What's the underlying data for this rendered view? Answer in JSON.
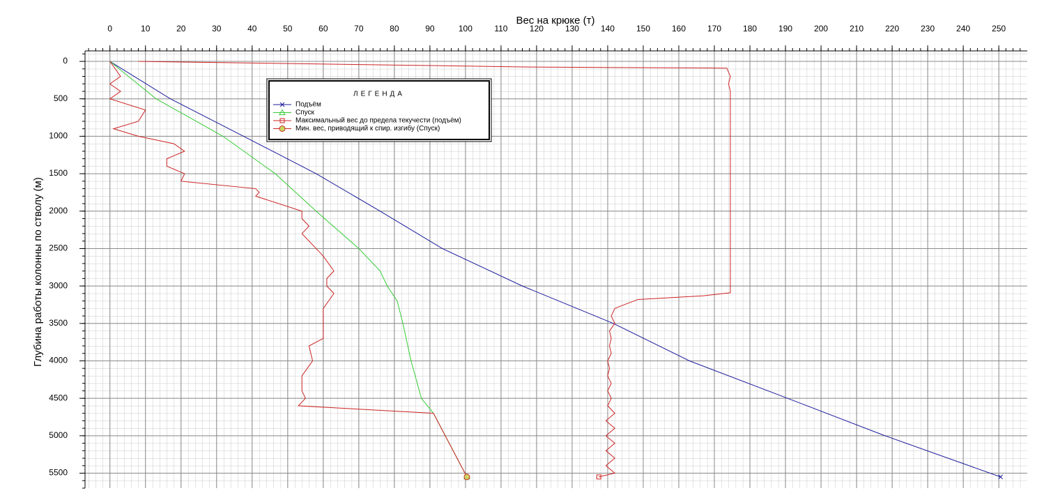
{
  "chart_data": {
    "type": "line",
    "x_label": "Вес на крюке (т)",
    "y_label": "Глубина работы колонны по стволу (м)",
    "xlim": [
      -7,
      258
    ],
    "ylim": [
      -140,
      5700
    ],
    "y_inverted": true,
    "x_axis_position": "top",
    "xticks": [
      0,
      10,
      20,
      30,
      40,
      50,
      60,
      70,
      80,
      90,
      100,
      110,
      120,
      130,
      140,
      150,
      160,
      170,
      180,
      190,
      200,
      210,
      220,
      230,
      240,
      250
    ],
    "yticks": [
      0,
      500,
      1000,
      1500,
      2000,
      2500,
      3000,
      3500,
      4000,
      4500,
      5000,
      5500
    ],
    "grid": true,
    "legend": {
      "title": "ЛЕГЕНДА",
      "position": "upper-left"
    },
    "series": [
      {
        "name": "Подъём",
        "color": "#1c1c9c",
        "marker": "x",
        "x": [
          0,
          17,
          37.6,
          58,
          76,
          93.5,
          116,
          141.6,
          163,
          190.6,
          218,
          250.5
        ],
        "y": [
          0,
          500,
          1000,
          1500,
          2000,
          2500,
          3000,
          3500,
          4000,
          4500,
          5000,
          5550
        ]
      },
      {
        "name": "Спуск",
        "color": "#33cc33",
        "marker": "triangle",
        "x": [
          0,
          13,
          31.8,
          46.5,
          58,
          70,
          76,
          78,
          80.8,
          82.4,
          84.7,
          87.6,
          91,
          100.4
        ],
        "y": [
          0,
          500,
          1000,
          1500,
          2000,
          2500,
          2800,
          3000,
          3200,
          3500,
          4000,
          4500,
          4700,
          5550
        ]
      },
      {
        "name": "Максимальный вес до предела текучести (подъём)",
        "color": "#cc2222",
        "marker": "square",
        "x": [
          8,
          118,
          173.5,
          174.5,
          174,
          174.5,
          174.5,
          174.5,
          167,
          148.5,
          143,
          142,
          141,
          142,
          140.5,
          141,
          140.5,
          141,
          140,
          140.5,
          140,
          141,
          140,
          141,
          140,
          142,
          139.5,
          142,
          139.5,
          142,
          139.5,
          142,
          139.5,
          142,
          137.5
        ],
        "y": [
          0,
          75,
          90,
          200,
          300,
          400,
          1000,
          3090,
          3130,
          3180,
          3280,
          3300,
          3400,
          3500,
          3600,
          3700,
          3800,
          3900,
          4000,
          4100,
          4200,
          4300,
          4400,
          4500,
          4600,
          4700,
          4800,
          4900,
          5000,
          5100,
          5200,
          5300,
          5400,
          5500,
          5550
        ]
      },
      {
        "name": "Мин. вес, приводящий к спир. изгибу (Спуск)",
        "color": "#cc2222",
        "marker": "circle",
        "x": [
          0,
          3,
          0,
          3,
          0,
          10,
          8,
          1,
          8,
          18,
          21,
          16,
          16,
          21,
          20,
          41,
          42,
          41,
          54,
          54,
          56,
          54,
          56,
          60,
          63,
          61,
          61,
          63,
          60,
          60,
          60,
          56,
          57,
          54,
          54,
          55,
          53,
          91,
          100.4
        ],
        "y": [
          0,
          200,
          300,
          400,
          500,
          650,
          800,
          900,
          1000,
          1100,
          1200,
          1300,
          1400,
          1500,
          1600,
          1700,
          1750,
          1800,
          2000,
          2100,
          2200,
          2300,
          2400,
          2600,
          2800,
          2900,
          3000,
          3100,
          3300,
          3500,
          3700,
          3800,
          4000,
          4200,
          4400,
          4500,
          4600,
          4700,
          5550
        ]
      }
    ]
  }
}
